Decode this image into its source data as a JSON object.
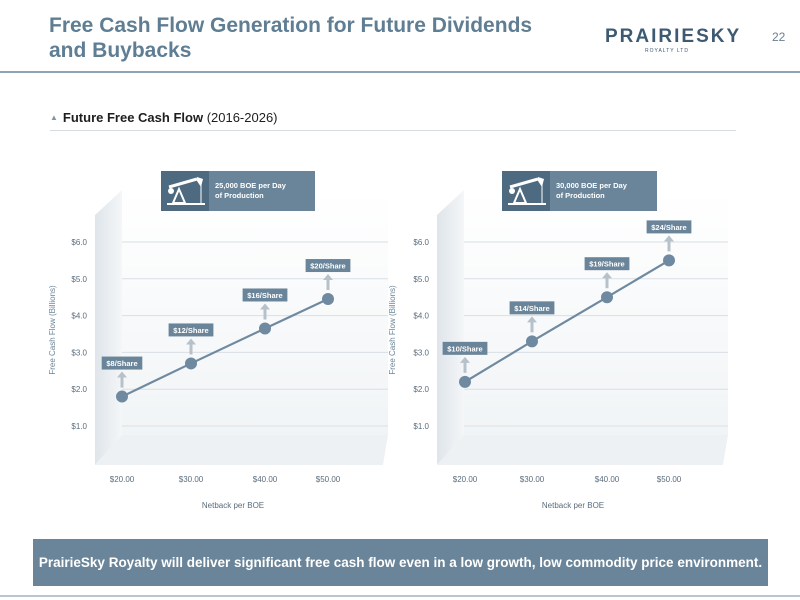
{
  "slide": {
    "title": "Free Cash Flow Generation for Future Dividends and Buybacks",
    "page_number": "22"
  },
  "logo": {
    "wordmark": "PRAIRIESKY",
    "subtitle": "ROYALTY LTD"
  },
  "section": {
    "heading_bold": "Future Free Cash Flow",
    "heading_rest": "(2016-2026)"
  },
  "colors": {
    "title": "#5f7d93",
    "banner": "#6a8599",
    "series_line": "#6f8aa0",
    "marker": "#6f8aa0",
    "label_box": "#6a8599"
  },
  "footer": {
    "text": "PrairieSky Royalty will deliver significant free cash flow even in a low growth, low commodity price environment."
  },
  "chart_data": [
    {
      "type": "line",
      "header": "25,000 BOE per Day of Production",
      "icon": "pumpjack-icon",
      "xlabel": "Netback per BOE",
      "ylabel": "Free Cash Flow (Billions)",
      "x_ticks": [
        "$20.00",
        "$30.00",
        "$40.00",
        "$50.00"
      ],
      "y_ticks": [
        "$1.0",
        "$2.0",
        "$3.0",
        "$4.0",
        "$5.0",
        "$6.0"
      ],
      "ylim": [
        1.0,
        6.0
      ],
      "grid": true,
      "x": [
        20,
        30,
        40,
        50
      ],
      "values": [
        1.8,
        2.7,
        3.65,
        4.45
      ],
      "annotations": [
        "$8/Share",
        "$12/Share",
        "$16/Share",
        "$20/Share"
      ]
    },
    {
      "type": "line",
      "header": "30,000 BOE per Day of Production",
      "icon": "pumpjack-icon",
      "xlabel": "Netback per BOE",
      "ylabel": "Free Cash Flow (Billions)",
      "x_ticks": [
        "$20.00",
        "$30.00",
        "$40.00",
        "$50.00"
      ],
      "y_ticks": [
        "$1.0",
        "$2.0",
        "$3.0",
        "$4.0",
        "$5.0",
        "$6.0"
      ],
      "ylim": [
        1.0,
        6.0
      ],
      "grid": true,
      "x": [
        20,
        30,
        40,
        50
      ],
      "values": [
        2.2,
        3.3,
        4.5,
        5.5
      ],
      "annotations": [
        "$10/Share",
        "$14/Share",
        "$19/Share",
        "$24/Share"
      ]
    }
  ]
}
